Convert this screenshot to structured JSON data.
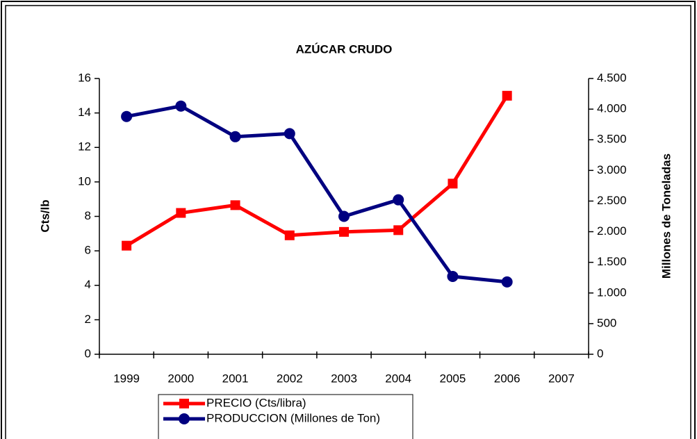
{
  "chart_data": {
    "type": "line",
    "title": "AZÚCAR CRUDO",
    "ylabel": "Cts/lb",
    "y2label": "Millones de Toneladas",
    "categories": [
      "1999",
      "2000",
      "2001",
      "2002",
      "2003",
      "2004",
      "2005",
      "2006",
      "2007"
    ],
    "series": [
      {
        "name": "PRECIO (Cts/libra)",
        "color": "#ff0000",
        "marker": "square",
        "values": [
          6.3,
          8.2,
          8.65,
          6.9,
          7.1,
          7.2,
          9.9,
          15.0,
          null
        ]
      },
      {
        "name": "PRODUCCION (Millones de Ton)",
        "color": "#000080",
        "marker": "circle",
        "axis": "y2",
        "values": [
          3880,
          4050,
          3550,
          3600,
          2250,
          2520,
          1270,
          1180,
          null
        ]
      }
    ],
    "ylim": [
      0,
      16
    ],
    "yticks": [
      0,
      2,
      4,
      6,
      8,
      10,
      12,
      14,
      16
    ],
    "y2lim": [
      0,
      4500
    ],
    "y2ticks": [
      0,
      500,
      {
        "value": 1000,
        "label": "1.000"
      },
      {
        "value": 1500,
        "label": "1.500"
      },
      {
        "value": 2000,
        "label": "2.000"
      },
      {
        "value": 2500,
        "label": "2.500"
      },
      {
        "value": 3000,
        "label": "3.000"
      },
      {
        "value": 3500,
        "label": "3.500"
      },
      {
        "value": 4000,
        "label": "4.000"
      },
      {
        "value": 4500,
        "label": "4.500"
      }
    ],
    "grid": false
  }
}
